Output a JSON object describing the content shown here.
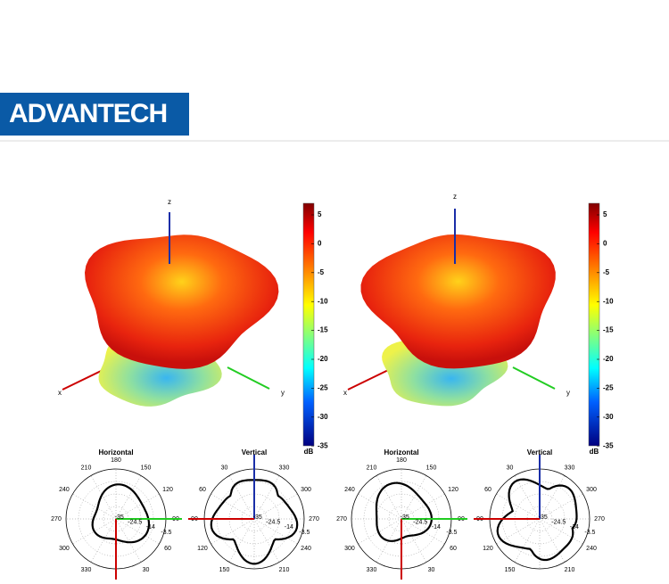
{
  "header": {
    "logo": "ADVANTECH"
  },
  "figures": [
    {
      "axes": {
        "z": "z",
        "x": "x",
        "y": "y"
      },
      "colorbar": {
        "ticks": [
          5,
          0,
          -5,
          -10,
          -15,
          -20,
          -25,
          -30,
          -35
        ],
        "unit": "dB"
      },
      "polar": [
        {
          "title": "Horizontal",
          "angles": [
            180,
            150,
            120,
            90,
            60,
            30,
            null,
            330,
            300,
            270,
            240,
            210
          ],
          "radii": [
            -35,
            -24.5,
            -14,
            -3.5
          ]
        },
        {
          "title": "Vertical",
          "angles": [
            null,
            330,
            300,
            270,
            240,
            210,
            null,
            150,
            120,
            90,
            60,
            30
          ],
          "radii": [
            -35,
            -24.5,
            -14,
            -3.5
          ]
        }
      ]
    },
    {
      "axes": {
        "z": "z",
        "x": "x",
        "y": "y"
      },
      "colorbar": {
        "ticks": [
          5,
          0,
          -5,
          -10,
          -15,
          -20,
          -25,
          -30,
          -35
        ],
        "unit": "dB"
      },
      "polar": [
        {
          "title": "Horizontal",
          "angles": [
            180,
            150,
            120,
            90,
            60,
            30,
            null,
            330,
            300,
            270,
            240,
            210
          ],
          "radii": [
            -35,
            -24.5,
            -14,
            -3.5
          ]
        },
        {
          "title": "Vertical",
          "angles": [
            null,
            330,
            300,
            270,
            240,
            210,
            null,
            150,
            120,
            90,
            60,
            30
          ],
          "radii": [
            -35,
            -24.5,
            -14,
            -3.5
          ]
        }
      ]
    }
  ]
}
